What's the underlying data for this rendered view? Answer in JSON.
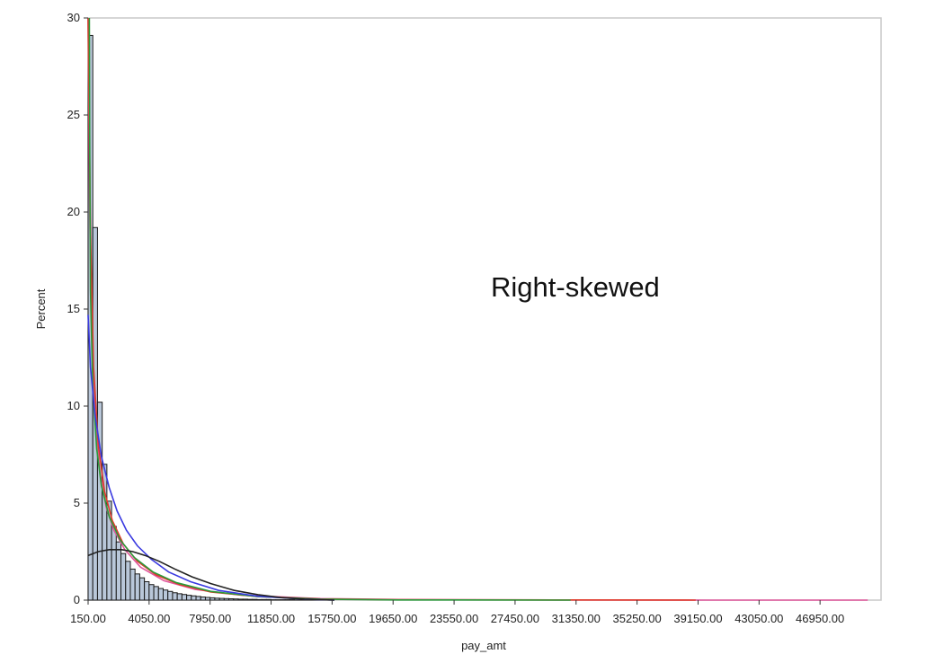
{
  "chart_data": {
    "type": "histogram",
    "xlabel": "pay_amt",
    "ylabel": "Percent",
    "annotation": "Right-skewed",
    "xlim": [
      150,
      50850
    ],
    "ylim": [
      0,
      30
    ],
    "grid": false,
    "legend": "none",
    "x_ticks": [
      "150.00",
      "4050.00",
      "7950.00",
      "11850.00",
      "15750.00",
      "19650.00",
      "23550.00",
      "27450.00",
      "31350.00",
      "35250.00",
      "39150.00",
      "43050.00",
      "46950.00"
    ],
    "y_ticks": [
      "0",
      "5",
      "10",
      "15",
      "20",
      "25",
      "30"
    ],
    "bin_width": 300,
    "bin_start": 150,
    "bars": [
      29.1,
      19.2,
      10.2,
      7.0,
      5.1,
      3.8,
      3.0,
      2.4,
      2.0,
      1.6,
      1.35,
      1.15,
      0.95,
      0.8,
      0.7,
      0.6,
      0.52,
      0.45,
      0.38,
      0.33,
      0.29,
      0.25,
      0.22,
      0.19,
      0.16,
      0.14,
      0.12,
      0.1,
      0.09,
      0.08,
      0.07,
      0.06,
      0.05,
      0.05,
      0.04,
      0.04,
      0.03,
      0.03,
      0.03,
      0.02,
      0.02,
      0.02,
      0.02,
      0.02,
      0.01,
      0.01,
      0.01,
      0.01,
      0.01,
      0.01,
      0.01,
      0.01
    ],
    "colors": {
      "bar_fill": "#b9c7d9",
      "bar_stroke": "#1a1a1a",
      "frame": "#c8c8c8"
    },
    "series": [
      {
        "color": "#e0559a",
        "x": [
          150,
          250,
          400,
          600,
          900,
          1300,
          1800,
          2500,
          3500,
          5000,
          7000,
          10000,
          15000,
          20000,
          30000,
          40000,
          50000
        ],
        "y": [
          30,
          20.0,
          13.0,
          9.2,
          6.6,
          4.8,
          3.6,
          2.6,
          1.7,
          1.0,
          0.55,
          0.25,
          0.08,
          0.03,
          0.01,
          0.0,
          0.0
        ]
      },
      {
        "color": "#e03a2a",
        "x": [
          150,
          300,
          500,
          800,
          1200,
          1700,
          2400,
          3300,
          4500,
          6000,
          8000,
          11000,
          15000,
          20000,
          30000,
          39000
        ],
        "y": [
          30,
          19.0,
          12.0,
          8.0,
          5.6,
          4.1,
          2.9,
          2.0,
          1.3,
          0.8,
          0.42,
          0.18,
          0.06,
          0.02,
          0.01,
          0.0
        ]
      },
      {
        "color": "#2a9a3a",
        "x": [
          230,
          250,
          300,
          450,
          700,
          1000,
          1500,
          2200,
          3100,
          4300,
          5800,
          8000,
          11000,
          15000,
          20000,
          31000
        ],
        "y": [
          30,
          24.0,
          16.0,
          11.0,
          7.8,
          5.9,
          4.3,
          3.1,
          2.2,
          1.45,
          0.9,
          0.45,
          0.18,
          0.05,
          0.01,
          0.0
        ]
      },
      {
        "color": "#3a3ae0",
        "x": [
          150,
          300,
          600,
          1000,
          1500,
          2000,
          2600,
          3300,
          4200,
          5300,
          6700,
          8500,
          11000,
          14000,
          15900
        ],
        "y": [
          14.7,
          12.0,
          9.5,
          7.4,
          5.8,
          4.6,
          3.6,
          2.8,
          2.1,
          1.45,
          0.95,
          0.5,
          0.2,
          0.05,
          0.0
        ]
      },
      {
        "color": "#222222",
        "x": [
          150,
          800,
          1500,
          2300,
          3000,
          3800,
          4700,
          5700,
          6800,
          8000,
          9500,
          11000,
          12500,
          14000,
          15900
        ],
        "y": [
          2.3,
          2.5,
          2.6,
          2.6,
          2.5,
          2.3,
          2.0,
          1.6,
          1.2,
          0.85,
          0.5,
          0.28,
          0.13,
          0.05,
          0.0
        ]
      }
    ]
  }
}
